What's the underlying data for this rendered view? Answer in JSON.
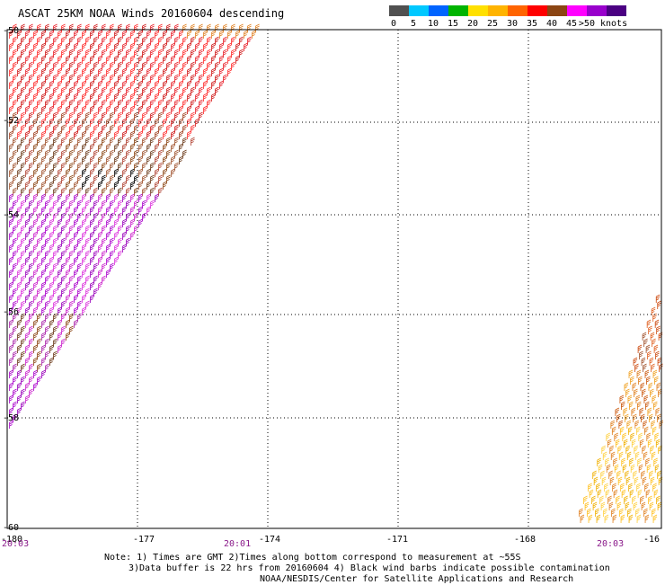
{
  "title": "ASCAT 25KM NOAA Winds 20160604 descending",
  "legend": {
    "colors": [
      "#505050",
      "#00c8ff",
      "#0064ff",
      "#00b400",
      "#ffe000",
      "#ffb400",
      "#ff6400",
      "#ff0000",
      "#8b4513",
      "#ff00ff",
      "#9900cc",
      "#4b0082"
    ],
    "labels": [
      "0",
      "5",
      "10",
      "15",
      "20",
      "25",
      "30",
      "35",
      "40",
      "45",
      ">50 knots"
    ]
  },
  "axes": {
    "lon_ticks": [
      "-180",
      "-177",
      "-174",
      "-171",
      "-168",
      "-16"
    ],
    "lat_ticks": [
      "-50",
      "-52",
      "-54",
      "-56",
      "-58",
      "-60"
    ]
  },
  "times": {
    "left": "20:03",
    "middle": "20:01",
    "right": "20:03"
  },
  "notes": {
    "line1": "Note: 1) Times are GMT 2)Times along bottom correspond to measurement at ~55S",
    "line2": "3)Data buffer is 22 hrs from 20160604 4) Black wind barbs indicate possible contamination",
    "line3": "NOAA/NESDIS/Center for Satellite Applications and Research"
  },
  "swaths": [
    {
      "name": "western-swath",
      "dominant": [
        "red",
        "brown",
        "magenta"
      ]
    },
    {
      "name": "eastern-swath",
      "dominant": [
        "orange",
        "yellow"
      ]
    }
  ]
}
